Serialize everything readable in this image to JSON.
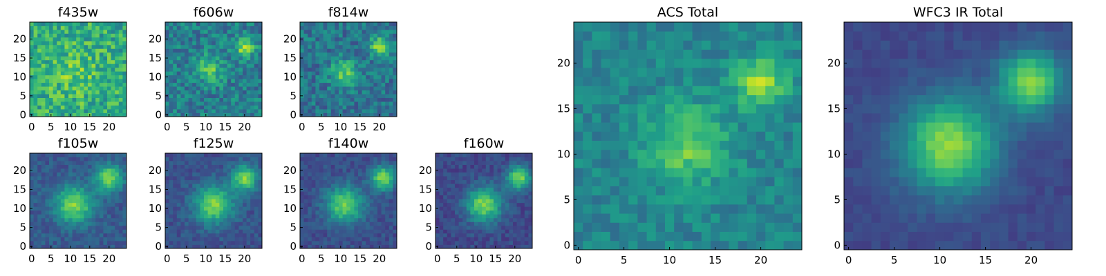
{
  "colormap": "viridis",
  "chart_data": [
    {
      "type": "heatmap",
      "title": "f435w",
      "grid_size": 25,
      "xlim": [
        0,
        24
      ],
      "ylim": [
        0,
        24
      ],
      "xticks": [
        0,
        5,
        10,
        15,
        20
      ],
      "yticks": [
        0,
        5,
        10,
        15,
        20
      ],
      "noise": 0.38,
      "sources": [
        {
          "x": 11,
          "y": 11,
          "sigma": 4.5,
          "amp": 0.12
        }
      ],
      "base": 0.62,
      "seed": 3
    },
    {
      "type": "heatmap",
      "title": "f606w",
      "grid_size": 25,
      "xlim": [
        0,
        24
      ],
      "ylim": [
        0,
        24
      ],
      "xticks": [
        0,
        5,
        10,
        15,
        20
      ],
      "yticks": [
        0,
        5,
        10,
        15,
        20
      ],
      "noise": 0.32,
      "sources": [
        {
          "x": 11,
          "y": 12,
          "sigma": 2.6,
          "amp": 0.3
        },
        {
          "x": 20,
          "y": 18,
          "sigma": 1.8,
          "amp": 0.42
        }
      ],
      "base": 0.42,
      "seed": 7
    },
    {
      "type": "heatmap",
      "title": "f814w",
      "grid_size": 25,
      "xlim": [
        0,
        24
      ],
      "ylim": [
        0,
        24
      ],
      "xticks": [
        0,
        5,
        10,
        15,
        20
      ],
      "yticks": [
        0,
        5,
        10,
        15,
        20
      ],
      "noise": 0.3,
      "sources": [
        {
          "x": 11,
          "y": 11,
          "sigma": 2.6,
          "amp": 0.35
        },
        {
          "x": 20,
          "y": 18,
          "sigma": 1.8,
          "amp": 0.5
        }
      ],
      "base": 0.38,
      "seed": 11
    },
    {
      "type": "heatmap",
      "title": "f105w",
      "grid_size": 25,
      "xlim": [
        0,
        24
      ],
      "ylim": [
        0,
        24
      ],
      "xticks": [
        0,
        5,
        10,
        15,
        20
      ],
      "yticks": [
        0,
        5,
        10,
        15,
        20
      ],
      "noise": 0.16,
      "sources": [
        {
          "x": 11,
          "y": 11,
          "sigma": 3.4,
          "amp": 0.55
        },
        {
          "x": 20,
          "y": 18,
          "sigma": 2.4,
          "amp": 0.55
        }
      ],
      "base": 0.28,
      "seed": 13
    },
    {
      "type": "heatmap",
      "title": "f125w",
      "grid_size": 25,
      "xlim": [
        0,
        24
      ],
      "ylim": [
        0,
        24
      ],
      "xticks": [
        0,
        5,
        10,
        15,
        20
      ],
      "yticks": [
        0,
        5,
        10,
        15,
        20
      ],
      "noise": 0.15,
      "sources": [
        {
          "x": 12,
          "y": 11,
          "sigma": 3.6,
          "amp": 0.55
        },
        {
          "x": 20,
          "y": 18,
          "sigma": 2.4,
          "amp": 0.55
        }
      ],
      "base": 0.25,
      "seed": 17
    },
    {
      "type": "heatmap",
      "title": "f140w",
      "grid_size": 25,
      "xlim": [
        0,
        24
      ],
      "ylim": [
        0,
        24
      ],
      "xticks": [
        0,
        5,
        10,
        15,
        20
      ],
      "yticks": [
        0,
        5,
        10,
        15,
        20
      ],
      "noise": 0.15,
      "sources": [
        {
          "x": 11,
          "y": 11,
          "sigma": 3.4,
          "amp": 0.55
        },
        {
          "x": 21,
          "y": 18,
          "sigma": 2.2,
          "amp": 0.6
        }
      ],
      "base": 0.24,
      "seed": 19
    },
    {
      "type": "heatmap",
      "title": "f160w",
      "grid_size": 25,
      "xlim": [
        0,
        24
      ],
      "ylim": [
        0,
        24
      ],
      "xticks": [
        0,
        5,
        10,
        15,
        20
      ],
      "yticks": [
        0,
        5,
        10,
        15,
        20
      ],
      "noise": 0.15,
      "sources": [
        {
          "x": 12,
          "y": 11,
          "sigma": 3.2,
          "amp": 0.6
        },
        {
          "x": 21,
          "y": 18,
          "sigma": 2.2,
          "amp": 0.6
        }
      ],
      "base": 0.22,
      "seed": 23
    },
    {
      "type": "heatmap",
      "title": "ACS Total",
      "grid_size": 25,
      "xlim": [
        0,
        24
      ],
      "ylim": [
        0,
        24
      ],
      "xticks": [
        0,
        5,
        10,
        15,
        20
      ],
      "yticks": [
        0,
        5,
        10,
        15,
        20
      ],
      "noise": 0.2,
      "sources": [
        {
          "x": 12,
          "y": 11,
          "sigma": 3.2,
          "amp": 0.32
        },
        {
          "x": 20,
          "y": 18,
          "sigma": 2.0,
          "amp": 0.42
        }
      ],
      "base": 0.45,
      "seed": 29
    },
    {
      "type": "heatmap",
      "title": "WFC3 IR Total",
      "grid_size": 25,
      "xlim": [
        0,
        24
      ],
      "ylim": [
        0,
        24
      ],
      "xticks": [
        0,
        5,
        10,
        15,
        20
      ],
      "yticks": [
        0,
        5,
        10,
        15,
        20
      ],
      "noise": 0.08,
      "sources": [
        {
          "x": 11,
          "y": 11,
          "sigma": 3.6,
          "amp": 0.62
        },
        {
          "x": 20,
          "y": 18,
          "sigma": 2.4,
          "amp": 0.6
        }
      ],
      "base": 0.22,
      "seed": 31
    }
  ]
}
